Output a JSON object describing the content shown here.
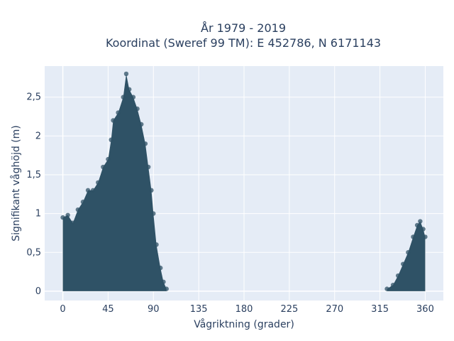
{
  "chart_data": {
    "type": "scatter",
    "title_line1": "År 1979 - 2019",
    "title_line2": "Koordinat (Sweref 99 TM): E 452786, N 6171143",
    "xlabel": "Vågriktning (grader)",
    "ylabel": "Signifikant våghöjd (m)",
    "xlim": [
      -18,
      378
    ],
    "ylim": [
      -0.12,
      2.9
    ],
    "xticks": [
      0,
      45,
      90,
      135,
      180,
      225,
      270,
      315,
      360
    ],
    "xtick_labels": [
      "0",
      "45",
      "90",
      "135",
      "180",
      "225",
      "270",
      "315",
      "360"
    ],
    "yticks": [
      0,
      0.5,
      1,
      1.5,
      2,
      2.5
    ],
    "ytick_labels": [
      "0",
      "0,5",
      "1",
      "1,5",
      "2",
      "2,5"
    ],
    "grid": true,
    "marker_color": "#2f5266",
    "plot_bg": "#e5ecf6",
    "envelope_points": [
      {
        "x": 0,
        "y": 0.95
      },
      {
        "x": 5,
        "y": 0.98
      },
      {
        "x": 10,
        "y": 0.88
      },
      {
        "x": 15,
        "y": 1.05
      },
      {
        "x": 20,
        "y": 1.15
      },
      {
        "x": 25,
        "y": 1.3
      },
      {
        "x": 30,
        "y": 1.3
      },
      {
        "x": 35,
        "y": 1.4
      },
      {
        "x": 40,
        "y": 1.6
      },
      {
        "x": 45,
        "y": 1.7
      },
      {
        "x": 48,
        "y": 1.95
      },
      {
        "x": 50,
        "y": 2.2
      },
      {
        "x": 55,
        "y": 2.3
      },
      {
        "x": 60,
        "y": 2.5
      },
      {
        "x": 63,
        "y": 2.8
      },
      {
        "x": 66,
        "y": 2.6
      },
      {
        "x": 70,
        "y": 2.5
      },
      {
        "x": 74,
        "y": 2.35
      },
      {
        "x": 78,
        "y": 2.15
      },
      {
        "x": 82,
        "y": 1.9
      },
      {
        "x": 85,
        "y": 1.6
      },
      {
        "x": 88,
        "y": 1.3
      },
      {
        "x": 90,
        "y": 1.0
      },
      {
        "x": 93,
        "y": 0.6
      },
      {
        "x": 97,
        "y": 0.3
      },
      {
        "x": 100,
        "y": 0.12
      },
      {
        "x": 103,
        "y": 0.03
      },
      {
        "x": 322,
        "y": 0.03
      },
      {
        "x": 328,
        "y": 0.08
      },
      {
        "x": 333,
        "y": 0.2
      },
      {
        "x": 338,
        "y": 0.35
      },
      {
        "x": 343,
        "y": 0.5
      },
      {
        "x": 348,
        "y": 0.7
      },
      {
        "x": 352,
        "y": 0.85
      },
      {
        "x": 355,
        "y": 0.9
      },
      {
        "x": 358,
        "y": 0.8
      },
      {
        "x": 360,
        "y": 0.7
      }
    ]
  }
}
